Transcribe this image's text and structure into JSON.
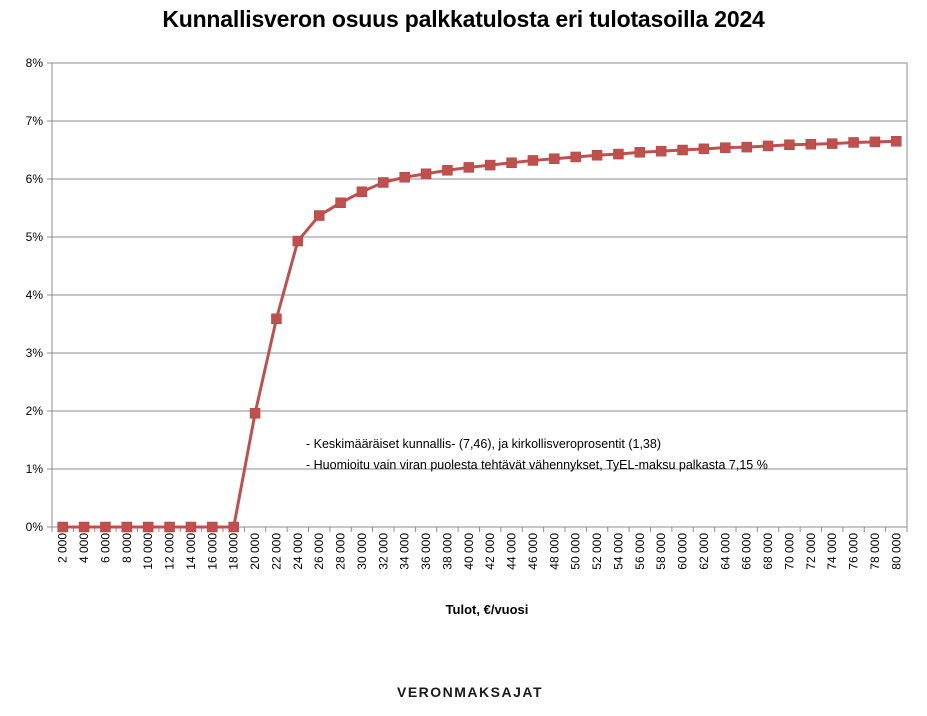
{
  "chart_data": {
    "type": "line",
    "title": "Kunnallisveron osuus palkkatulosta eri tulotasoilla 2024",
    "xlabel": "Tulot, €/vuosi",
    "ylabel": "",
    "x": [
      2000,
      4000,
      6000,
      8000,
      10000,
      12000,
      14000,
      16000,
      18000,
      20000,
      22000,
      24000,
      26000,
      28000,
      30000,
      32000,
      34000,
      36000,
      38000,
      40000,
      42000,
      44000,
      46000,
      48000,
      50000,
      52000,
      54000,
      56000,
      58000,
      60000,
      62000,
      64000,
      66000,
      68000,
      70000,
      72000,
      74000,
      76000,
      78000,
      80000
    ],
    "x_tick_labels": [
      "2 000",
      "4 000",
      "6 000",
      "8 000",
      "10 000",
      "12 000",
      "14 000",
      "16 000",
      "18 000",
      "20 000",
      "22 000",
      "24 000",
      "26 000",
      "28 000",
      "30 000",
      "32 000",
      "34 000",
      "36 000",
      "38 000",
      "40 000",
      "42 000",
      "44 000",
      "46 000",
      "48 000",
      "50 000",
      "52 000",
      "54 000",
      "56 000",
      "58 000",
      "60 000",
      "62 000",
      "64 000",
      "66 000",
      "68 000",
      "70 000",
      "72 000",
      "74 000",
      "76 000",
      "78 000",
      "80 000"
    ],
    "series": [
      {
        "values": [
          0,
          0,
          0,
          0,
          0,
          0,
          0,
          0,
          0,
          1.96,
          3.59,
          4.93,
          5.37,
          5.59,
          5.78,
          5.94,
          6.03,
          6.09,
          6.15,
          6.2,
          6.24,
          6.28,
          6.32,
          6.35,
          6.38,
          6.41,
          6.43,
          6.46,
          6.48,
          6.5,
          6.52,
          6.54,
          6.55,
          6.57,
          6.59,
          6.6,
          6.61,
          6.63,
          6.64,
          6.65
        ],
        "color": "#c0504d"
      }
    ],
    "ylim": [
      0,
      8
    ],
    "y_tick_labels": [
      "0%",
      "1%",
      "2%",
      "3%",
      "4%",
      "5%",
      "6%",
      "7%",
      "8%"
    ],
    "grid": true,
    "legend": "none",
    "annotations": [
      "- Keskimääräiset kunnallis- (7,46), ja kirkollisveroprosentit (1,38)",
      "- Huomioitu vain viran puolesta tehtävät vähennykset, TyEL-maksu palkasta 7,15 %"
    ]
  },
  "footer": {
    "brand": "VERONMAKSAJAT"
  }
}
